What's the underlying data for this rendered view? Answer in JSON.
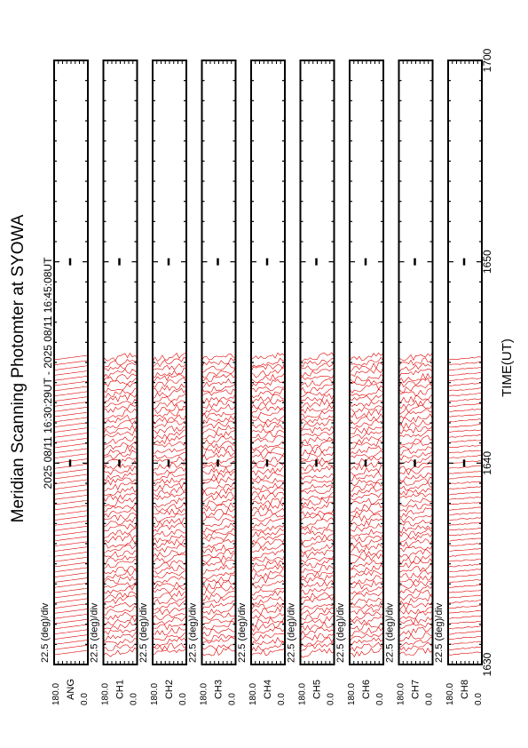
{
  "page": {
    "title": "Meridian Scanning Photomter at SYOWA",
    "time_range": "2025 08/11 16:30:29UT - 2025 08/11 16:45:08UT",
    "xlabel": "TIME(UT)"
  },
  "chart_data": {
    "type": "line",
    "title": "Meridian Scanning Photomter at SYOWA",
    "subtitle": "2025 08/11 16:30:29UT - 2025 08/11 16:45:08UT",
    "xlabel": "TIME(UT)",
    "x_ticks": [
      "1630",
      "1640",
      "1650",
      "1700"
    ],
    "xlim": [
      "16:30",
      "17:00"
    ],
    "data_start": "16:30:29",
    "data_end": "16:45:08",
    "ylim_deg": [
      0,
      180
    ],
    "scale": "22.5 (deg)/div",
    "y_tick_top": "180.0",
    "y_tick_bottom": "0.0",
    "trace_color": "#e00000",
    "series": [
      {
        "channel": "ANG",
        "scale": "22.5 (deg)/div"
      },
      {
        "channel": "CH1",
        "scale": "22.5 (deg)/div"
      },
      {
        "channel": "CH2",
        "scale": "22.5 (deg)/div"
      },
      {
        "channel": "CH3",
        "scale": "22.5 (deg)/div"
      },
      {
        "channel": "CH4",
        "scale": "22.5 (deg)/div"
      },
      {
        "channel": "CH5",
        "scale": "22.5 (deg)/div"
      },
      {
        "channel": "CH6",
        "scale": "22.5 (deg)/div"
      },
      {
        "channel": "CH7",
        "scale": "22.5 (deg)/div"
      },
      {
        "channel": "CH8",
        "scale": "22.5 (deg)/div"
      }
    ]
  }
}
